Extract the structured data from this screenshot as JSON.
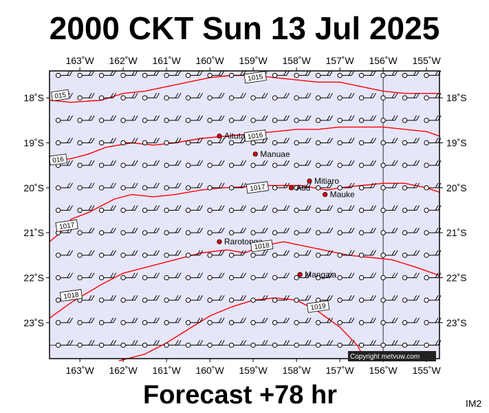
{
  "header": {
    "title": "2000 CKT Sun 13 Jul 2025"
  },
  "footer": {
    "forecast": "Forecast +78 hr",
    "code": "IM2"
  },
  "map": {
    "lon_range": [
      -163.7,
      -154.7
    ],
    "lat_range": [
      -23.8,
      -17.4
    ],
    "background": "#e6e6fa",
    "isobar_color": "#ff0000",
    "lon_ticks": [
      {
        "value": -163,
        "label": "163˚W"
      },
      {
        "value": -162,
        "label": "162˚W"
      },
      {
        "value": -161,
        "label": "161˚W"
      },
      {
        "value": -160,
        "label": "160˚W"
      },
      {
        "value": -159,
        "label": "159˚W"
      },
      {
        "value": -158,
        "label": "158˚W"
      },
      {
        "value": -157,
        "label": "157˚W"
      },
      {
        "value": -156,
        "label": "156˚W"
      },
      {
        "value": -155,
        "label": "155˚W"
      }
    ],
    "lat_ticks": [
      {
        "value": -18,
        "label": "18˚S"
      },
      {
        "value": -19,
        "label": "19˚S"
      },
      {
        "value": -20,
        "label": "20˚S"
      },
      {
        "value": -21,
        "label": "21˚S"
      },
      {
        "value": -22,
        "label": "22˚S"
      },
      {
        "value": -23,
        "label": "23˚S"
      }
    ],
    "reference_lines": {
      "meridian": -156,
      "parallel": -23.5
    },
    "places": [
      {
        "name": "Aitutaki",
        "lon": -159.78,
        "lat": -18.85
      },
      {
        "name": "Manuae",
        "lon": -158.95,
        "lat": -19.25
      },
      {
        "name": "Mitiaro",
        "lon": -157.7,
        "lat": -19.85
      },
      {
        "name": "Atiu",
        "lon": -158.12,
        "lat": -20.0
      },
      {
        "name": "Mauke",
        "lon": -157.34,
        "lat": -20.15
      },
      {
        "name": "Rarotonga",
        "lon": -159.78,
        "lat": -21.2
      },
      {
        "name": "Mangaia",
        "lon": -157.92,
        "lat": -21.93
      }
    ],
    "isobars": [
      {
        "label": "1015",
        "label_pos": [
          -158.95,
          -17.55
        ],
        "points": [
          [
            -163.7,
            -18.05
          ],
          [
            -163.2,
            -18.1
          ],
          [
            -162.5,
            -18.05
          ],
          [
            -162.0,
            -17.9
          ],
          [
            -161.5,
            -17.85
          ],
          [
            -161.0,
            -17.75
          ],
          [
            -160.5,
            -17.65
          ],
          [
            -160.0,
            -17.55
          ],
          [
            -159.5,
            -17.5
          ],
          [
            -159.0,
            -17.5
          ],
          [
            -158.5,
            -17.55
          ],
          [
            -158.0,
            -17.6
          ],
          [
            -157.5,
            -17.65
          ],
          [
            -157.0,
            -17.65
          ],
          [
            -156.5,
            -17.75
          ],
          [
            -156.0,
            -17.85
          ],
          [
            -155.5,
            -17.9
          ],
          [
            -155.0,
            -17.9
          ],
          [
            -154.7,
            -17.9
          ]
        ]
      },
      {
        "label": "015",
        "label_pos": [
          -163.45,
          -17.95
        ],
        "points": []
      },
      {
        "label": "1016",
        "label_pos": [
          -158.95,
          -18.85
        ],
        "points": [
          [
            -163.7,
            -19.4
          ],
          [
            -163.2,
            -19.35
          ],
          [
            -162.8,
            -19.25
          ],
          [
            -162.4,
            -19.1
          ],
          [
            -161.8,
            -19.0
          ],
          [
            -161.3,
            -19.05
          ],
          [
            -160.8,
            -19.0
          ],
          [
            -160.2,
            -18.9
          ],
          [
            -159.6,
            -18.85
          ],
          [
            -159.0,
            -18.8
          ],
          [
            -158.5,
            -18.75
          ],
          [
            -158.0,
            -18.7
          ],
          [
            -157.5,
            -18.7
          ],
          [
            -157.0,
            -18.65
          ],
          [
            -156.5,
            -18.65
          ],
          [
            -156.0,
            -18.65
          ],
          [
            -155.5,
            -18.7
          ],
          [
            -155.0,
            -18.75
          ],
          [
            -154.7,
            -18.85
          ]
        ]
      },
      {
        "label": "016",
        "label_pos": [
          -163.5,
          -19.38
        ],
        "points": []
      },
      {
        "label": "1017",
        "label_pos": [
          -158.9,
          -20.0
        ],
        "points": [
          [
            -163.7,
            -21.2
          ],
          [
            -163.45,
            -21.0
          ],
          [
            -163.2,
            -20.7
          ],
          [
            -162.8,
            -20.55
          ],
          [
            -162.5,
            -20.4
          ],
          [
            -162.2,
            -20.25
          ],
          [
            -161.8,
            -20.15
          ],
          [
            -161.3,
            -20.2
          ],
          [
            -160.8,
            -20.15
          ],
          [
            -160.2,
            -20.05
          ],
          [
            -159.7,
            -20.0
          ],
          [
            -159.2,
            -19.98
          ],
          [
            -158.7,
            -19.95
          ],
          [
            -158.3,
            -19.95
          ],
          [
            -157.9,
            -19.95
          ],
          [
            -157.6,
            -20.0
          ],
          [
            -157.3,
            -20.05
          ],
          [
            -157.0,
            -20.0
          ],
          [
            -156.5,
            -19.95
          ],
          [
            -156.0,
            -19.9
          ],
          [
            -155.5,
            -19.9
          ],
          [
            -155.0,
            -20.0
          ],
          [
            -154.7,
            -20.1
          ]
        ]
      },
      {
        "label": "1017",
        "label_pos": [
          -163.3,
          -20.85
        ],
        "points": []
      },
      {
        "label": "1018",
        "label_pos": [
          -158.8,
          -21.3
        ],
        "points": [
          [
            -163.7,
            -22.9
          ],
          [
            -163.2,
            -22.55
          ],
          [
            -162.5,
            -22.15
          ],
          [
            -162.0,
            -21.9
          ],
          [
            -161.4,
            -21.75
          ],
          [
            -160.8,
            -21.6
          ],
          [
            -160.2,
            -21.45
          ],
          [
            -159.6,
            -21.38
          ],
          [
            -159.2,
            -21.45
          ],
          [
            -158.8,
            -21.3
          ],
          [
            -158.3,
            -21.2
          ],
          [
            -157.8,
            -21.3
          ],
          [
            -157.3,
            -21.4
          ],
          [
            -156.8,
            -21.5
          ],
          [
            -156.3,
            -21.55
          ],
          [
            -155.8,
            -21.6
          ],
          [
            -155.3,
            -21.75
          ],
          [
            -154.7,
            -21.95
          ]
        ]
      },
      {
        "label": "1018",
        "label_pos": [
          -163.2,
          -22.4
        ],
        "points": []
      },
      {
        "label": "1019",
        "label_pos": [
          -157.5,
          -22.65
        ],
        "points": [
          [
            -162.1,
            -23.85
          ],
          [
            -161.5,
            -23.7
          ],
          [
            -161.0,
            -23.45
          ],
          [
            -160.5,
            -23.15
          ],
          [
            -160.0,
            -22.85
          ],
          [
            -159.5,
            -22.65
          ],
          [
            -159.0,
            -22.5
          ],
          [
            -158.5,
            -22.45
          ],
          [
            -158.0,
            -22.5
          ],
          [
            -157.5,
            -22.75
          ],
          [
            -157.0,
            -23.1
          ],
          [
            -156.6,
            -23.5
          ],
          [
            -156.4,
            -23.85
          ]
        ]
      }
    ],
    "wind_rows": [
      -17.5,
      -18.0,
      -18.5,
      -19.0,
      -19.5,
      -20.0,
      -20.5,
      -21.0,
      -21.5,
      -22.0,
      -22.5,
      -23.0,
      -23.5
    ],
    "wind_cols": [
      -163.5,
      -163.0,
      -162.5,
      -162.0,
      -161.5,
      -161.0,
      -160.5,
      -160.0,
      -159.5,
      -159.0,
      -158.5,
      -158.0,
      -157.5,
      -157.0,
      -156.5,
      -156.0,
      -155.5,
      -155.0
    ],
    "wind_feather_count": 2
  },
  "copyright": "Copyright metvuw.com"
}
